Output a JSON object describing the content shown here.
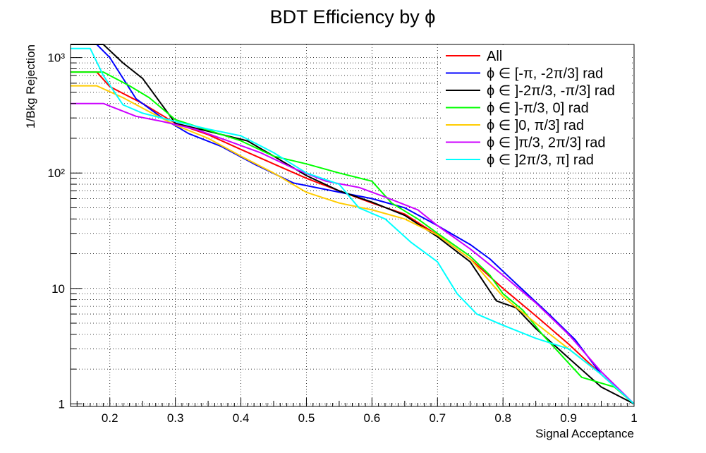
{
  "chart_data": {
    "type": "line",
    "title": "BDT Efficiency by ϕ",
    "xlabel": "Signal Acceptance",
    "ylabel": "1/Bkg Rejection",
    "xlim": [
      0.14,
      1.0
    ],
    "ylim": [
      0.95,
      1300
    ],
    "yscale": "log",
    "grid": true,
    "legend_position": "top-right",
    "x_ticks": [
      {
        "value": 0.2,
        "label": "0.2"
      },
      {
        "value": 0.3,
        "label": "0.3"
      },
      {
        "value": 0.4,
        "label": "0.4"
      },
      {
        "value": 0.5,
        "label": "0.5"
      },
      {
        "value": 0.6,
        "label": "0.6"
      },
      {
        "value": 0.7,
        "label": "0.7"
      },
      {
        "value": 0.8,
        "label": "0.8"
      },
      {
        "value": 0.9,
        "label": "0.9"
      },
      {
        "value": 1.0,
        "label": "1"
      }
    ],
    "y_ticks": [
      {
        "value": 1,
        "label": "1"
      },
      {
        "value": 10,
        "label": "10"
      },
      {
        "value": 100,
        "label": "10²"
      },
      {
        "value": 1000,
        "label": "10³"
      }
    ],
    "series": [
      {
        "name": "All",
        "color": "#ff0000",
        "points": [
          [
            0.14,
            750
          ],
          [
            0.18,
            750
          ],
          [
            0.2,
            560
          ],
          [
            0.25,
            400
          ],
          [
            0.3,
            270
          ],
          [
            0.35,
            215
          ],
          [
            0.4,
            160
          ],
          [
            0.45,
            120
          ],
          [
            0.5,
            90
          ],
          [
            0.55,
            70
          ],
          [
            0.6,
            55
          ],
          [
            0.65,
            44
          ],
          [
            0.7,
            29
          ],
          [
            0.75,
            18
          ],
          [
            0.8,
            10
          ],
          [
            0.85,
            5.8
          ],
          [
            0.9,
            3.3
          ],
          [
            0.95,
            1.8
          ],
          [
            1.0,
            1.0
          ]
        ]
      },
      {
        "name": "ϕ ∈ [-π, -2π/3] rad",
        "color": "#0000ff",
        "points": [
          [
            0.14,
            1300
          ],
          [
            0.18,
            1300
          ],
          [
            0.2,
            1000
          ],
          [
            0.24,
            440
          ],
          [
            0.28,
            300
          ],
          [
            0.32,
            220
          ],
          [
            0.37,
            170
          ],
          [
            0.42,
            120
          ],
          [
            0.48,
            82
          ],
          [
            0.54,
            70
          ],
          [
            0.6,
            60
          ],
          [
            0.65,
            50
          ],
          [
            0.7,
            35
          ],
          [
            0.75,
            24
          ],
          [
            0.78,
            18
          ],
          [
            0.82,
            11
          ],
          [
            0.87,
            6
          ],
          [
            0.91,
            3.6
          ],
          [
            0.95,
            1.8
          ],
          [
            1.0,
            1.0
          ]
        ]
      },
      {
        "name": "ϕ ∈ ]-2π/3, -π/3] rad",
        "color": "#000000",
        "points": [
          [
            0.14,
            1300
          ],
          [
            0.19,
            1300
          ],
          [
            0.22,
            900
          ],
          [
            0.25,
            660
          ],
          [
            0.3,
            270
          ],
          [
            0.35,
            230
          ],
          [
            0.41,
            190
          ],
          [
            0.45,
            140
          ],
          [
            0.5,
            95
          ],
          [
            0.55,
            70
          ],
          [
            0.6,
            56
          ],
          [
            0.65,
            43
          ],
          [
            0.7,
            28
          ],
          [
            0.75,
            17
          ],
          [
            0.79,
            7.8
          ],
          [
            0.82,
            6.8
          ],
          [
            0.85,
            4.5
          ],
          [
            0.9,
            2.5
          ],
          [
            0.95,
            1.4
          ],
          [
            1.0,
            1.0
          ]
        ]
      },
      {
        "name": "ϕ ∈ ]-π/3, 0] rad",
        "color": "#00ff00",
        "points": [
          [
            0.14,
            750
          ],
          [
            0.19,
            750
          ],
          [
            0.23,
            570
          ],
          [
            0.26,
            450
          ],
          [
            0.3,
            290
          ],
          [
            0.35,
            235
          ],
          [
            0.4,
            190
          ],
          [
            0.45,
            140
          ],
          [
            0.5,
            120
          ],
          [
            0.55,
            100
          ],
          [
            0.6,
            85
          ],
          [
            0.63,
            55
          ],
          [
            0.67,
            40
          ],
          [
            0.7,
            30
          ],
          [
            0.75,
            19
          ],
          [
            0.78,
            13
          ],
          [
            0.8,
            9
          ],
          [
            0.83,
            6.5
          ],
          [
            0.86,
            4
          ],
          [
            0.92,
            1.7
          ],
          [
            0.97,
            1.4
          ],
          [
            1.0,
            1.0
          ]
        ]
      },
      {
        "name": "ϕ ∈ ]0, π/3] rad",
        "color": "#ffcc00",
        "points": [
          [
            0.14,
            570
          ],
          [
            0.18,
            570
          ],
          [
            0.22,
            450
          ],
          [
            0.26,
            340
          ],
          [
            0.3,
            260
          ],
          [
            0.35,
            200
          ],
          [
            0.4,
            140
          ],
          [
            0.45,
            100
          ],
          [
            0.5,
            68
          ],
          [
            0.55,
            55
          ],
          [
            0.6,
            48
          ],
          [
            0.65,
            40
          ],
          [
            0.7,
            29
          ],
          [
            0.75,
            18
          ],
          [
            0.8,
            8.5
          ],
          [
            0.85,
            5
          ],
          [
            0.9,
            3
          ],
          [
            0.95,
            1.8
          ],
          [
            1.0,
            1.0
          ]
        ]
      },
      {
        "name": "ϕ ∈ ]π/3, 2π/3] rad",
        "color": "#cc00ff",
        "points": [
          [
            0.14,
            400
          ],
          [
            0.19,
            400
          ],
          [
            0.24,
            310
          ],
          [
            0.28,
            280
          ],
          [
            0.33,
            240
          ],
          [
            0.38,
            190
          ],
          [
            0.43,
            150
          ],
          [
            0.48,
            110
          ],
          [
            0.53,
            85
          ],
          [
            0.58,
            75
          ],
          [
            0.62,
            62
          ],
          [
            0.67,
            48
          ],
          [
            0.7,
            35
          ],
          [
            0.75,
            22
          ],
          [
            0.8,
            13
          ],
          [
            0.85,
            7.5
          ],
          [
            0.9,
            4
          ],
          [
            0.95,
            1.9
          ],
          [
            1.0,
            1.0
          ]
        ]
      },
      {
        "name": "ϕ ∈ ]2π/3, π] rad",
        "color": "#00ffff",
        "points": [
          [
            0.14,
            1200
          ],
          [
            0.17,
            1200
          ],
          [
            0.19,
            700
          ],
          [
            0.22,
            390
          ],
          [
            0.25,
            330
          ],
          [
            0.3,
            280
          ],
          [
            0.35,
            240
          ],
          [
            0.4,
            210
          ],
          [
            0.45,
            150
          ],
          [
            0.5,
            100
          ],
          [
            0.55,
            80
          ],
          [
            0.58,
            50
          ],
          [
            0.62,
            40
          ],
          [
            0.66,
            25
          ],
          [
            0.7,
            17
          ],
          [
            0.73,
            9
          ],
          [
            0.76,
            6
          ],
          [
            0.8,
            4.8
          ],
          [
            0.85,
            3.7
          ],
          [
            0.9,
            3.0
          ],
          [
            0.95,
            1.8
          ],
          [
            1.0,
            1.0
          ]
        ]
      }
    ]
  }
}
